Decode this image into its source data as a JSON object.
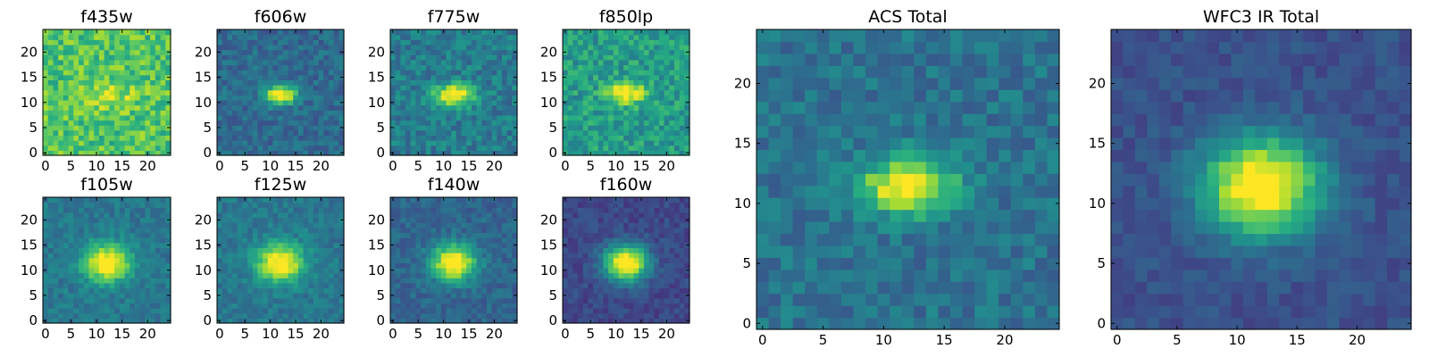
{
  "chart_data": [
    {
      "type": "heatmap",
      "title": "f435w",
      "colormap": "viridis",
      "grid_size": [
        25,
        25
      ],
      "x_ticks": [
        0,
        5,
        10,
        15,
        20
      ],
      "y_ticks": [
        0,
        5,
        10,
        15,
        20
      ],
      "xlim": [
        -0.5,
        24.5
      ],
      "ylim": [
        -0.5,
        24.5
      ],
      "source_center": [
        12,
        11.5
      ],
      "source_sigma": [
        3.5,
        2.2
      ],
      "peak_level": 0.9,
      "background_level": 0.72,
      "noise": 0.16,
      "grid": false
    },
    {
      "type": "heatmap",
      "title": "f606w",
      "colormap": "viridis",
      "grid_size": [
        25,
        25
      ],
      "x_ticks": [
        0,
        5,
        10,
        15,
        20
      ],
      "y_ticks": [
        0,
        5,
        10,
        15,
        20
      ],
      "xlim": [
        -0.5,
        24.5
      ],
      "ylim": [
        -0.5,
        24.5
      ],
      "source_center": [
        12,
        11.5
      ],
      "source_sigma": [
        2.2,
        1.3
      ],
      "peak_level": 1.0,
      "background_level": 0.35,
      "noise": 0.1,
      "grid": false
    },
    {
      "type": "heatmap",
      "title": "f775w",
      "colormap": "viridis",
      "grid_size": [
        25,
        25
      ],
      "x_ticks": [
        0,
        5,
        10,
        15,
        20
      ],
      "y_ticks": [
        0,
        5,
        10,
        15,
        20
      ],
      "xlim": [
        -0.5,
        24.5
      ],
      "ylim": [
        -0.5,
        24.5
      ],
      "source_center": [
        12,
        11.5
      ],
      "source_sigma": [
        2.8,
        1.5
      ],
      "peak_level": 1.0,
      "background_level": 0.42,
      "noise": 0.12,
      "grid": false
    },
    {
      "type": "heatmap",
      "title": "f850lp",
      "colormap": "viridis",
      "grid_size": [
        25,
        25
      ],
      "x_ticks": [
        0,
        5,
        10,
        15,
        20
      ],
      "y_ticks": [
        0,
        5,
        10,
        15,
        20
      ],
      "xlim": [
        -0.5,
        24.5
      ],
      "ylim": [
        -0.5,
        24.5
      ],
      "source_center": [
        12,
        12
      ],
      "source_sigma": [
        2.6,
        1.6
      ],
      "peak_level": 1.0,
      "background_level": 0.55,
      "noise": 0.14,
      "grid": false
    },
    {
      "type": "heatmap",
      "title": "f105w",
      "colormap": "viridis",
      "grid_size": [
        25,
        25
      ],
      "x_ticks": [
        0,
        5,
        10,
        15,
        20
      ],
      "y_ticks": [
        0,
        5,
        10,
        15,
        20
      ],
      "xlim": [
        -0.5,
        24.5
      ],
      "ylim": [
        -0.5,
        24.5
      ],
      "source_center": [
        12,
        11.5
      ],
      "source_sigma": [
        3.2,
        2.6
      ],
      "peak_level": 1.0,
      "background_level": 0.4,
      "noise": 0.08,
      "grid": false
    },
    {
      "type": "heatmap",
      "title": "f125w",
      "colormap": "viridis",
      "grid_size": [
        25,
        25
      ],
      "x_ticks": [
        0,
        5,
        10,
        15,
        20
      ],
      "y_ticks": [
        0,
        5,
        10,
        15,
        20
      ],
      "xlim": [
        -0.5,
        24.5
      ],
      "ylim": [
        -0.5,
        24.5
      ],
      "source_center": [
        12,
        11.5
      ],
      "source_sigma": [
        3.2,
        2.6
      ],
      "peak_level": 1.0,
      "background_level": 0.4,
      "noise": 0.08,
      "grid": false
    },
    {
      "type": "heatmap",
      "title": "f140w",
      "colormap": "viridis",
      "grid_size": [
        25,
        25
      ],
      "x_ticks": [
        0,
        5,
        10,
        15,
        20
      ],
      "y_ticks": [
        0,
        5,
        10,
        15,
        20
      ],
      "xlim": [
        -0.5,
        24.5
      ],
      "ylim": [
        -0.5,
        24.5
      ],
      "source_center": [
        12,
        11.5
      ],
      "source_sigma": [
        3.0,
        2.5
      ],
      "peak_level": 1.0,
      "background_level": 0.33,
      "noise": 0.08,
      "grid": false
    },
    {
      "type": "heatmap",
      "title": "f160w",
      "colormap": "viridis",
      "grid_size": [
        25,
        25
      ],
      "x_ticks": [
        0,
        5,
        10,
        15,
        20
      ],
      "y_ticks": [
        0,
        5,
        10,
        15,
        20
      ],
      "xlim": [
        -0.5,
        24.5
      ],
      "ylim": [
        -0.5,
        24.5
      ],
      "source_center": [
        12,
        11.5
      ],
      "source_sigma": [
        3.0,
        2.5
      ],
      "peak_level": 1.0,
      "background_level": 0.22,
      "noise": 0.07,
      "grid": false
    },
    {
      "type": "heatmap",
      "title": "ACS Total",
      "colormap": "viridis",
      "grid_size": [
        25,
        25
      ],
      "x_ticks": [
        0,
        5,
        10,
        15,
        20
      ],
      "y_ticks": [
        0,
        5,
        10,
        15,
        20
      ],
      "xlim": [
        -0.5,
        24.5
      ],
      "ylim": [
        -0.5,
        24.5
      ],
      "source_center": [
        12,
        11.5
      ],
      "source_sigma": [
        2.6,
        1.6
      ],
      "peak_level": 1.0,
      "background_level": 0.38,
      "noise": 0.1,
      "grid": false
    },
    {
      "type": "heatmap",
      "title": "WFC3 IR Total",
      "colormap": "viridis",
      "grid_size": [
        25,
        25
      ],
      "x_ticks": [
        0,
        5,
        10,
        15,
        20
      ],
      "y_ticks": [
        0,
        5,
        10,
        15,
        20
      ],
      "xlim": [
        -0.5,
        24.5
      ],
      "ylim": [
        -0.5,
        24.5
      ],
      "source_center": [
        12,
        11.5
      ],
      "source_sigma": [
        3.4,
        2.8
      ],
      "peak_level": 1.0,
      "background_level": 0.25,
      "noise": 0.06,
      "grid": false
    }
  ]
}
